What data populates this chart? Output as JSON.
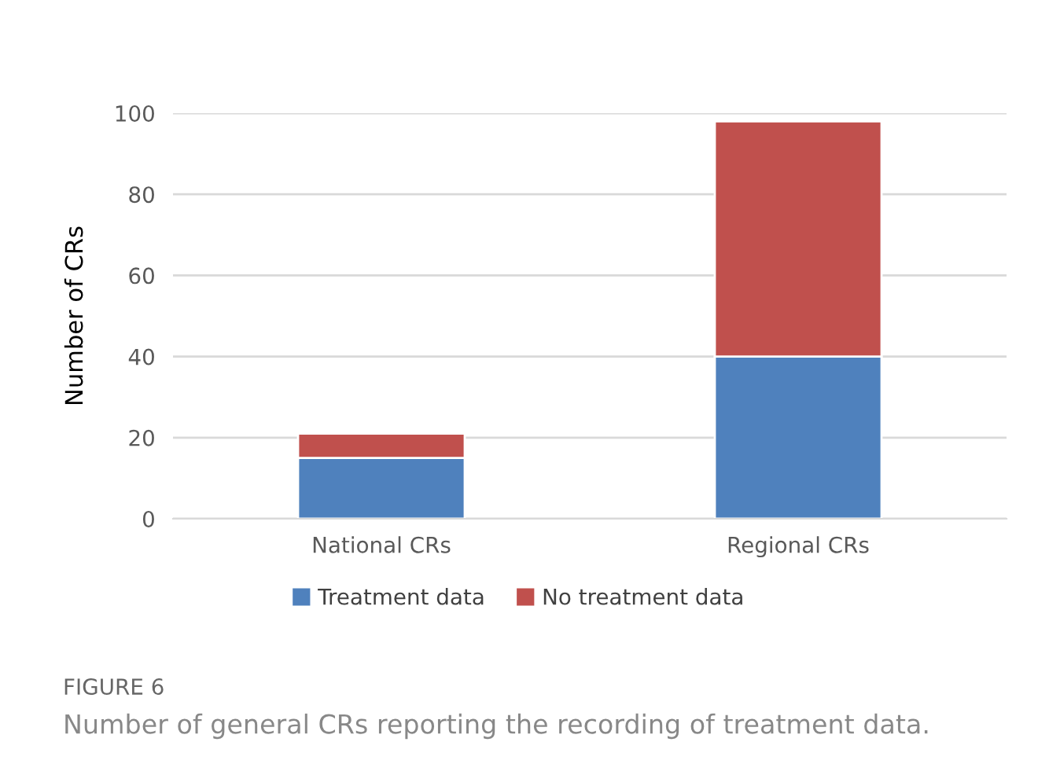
{
  "chart_data": {
    "type": "bar",
    "stacked": true,
    "ylabel": "Number of CRs",
    "categories": [
      "National CRs",
      "Regional CRs"
    ],
    "series": [
      {
        "name": "Treatment data",
        "color": "#4f81bd",
        "values": [
          15,
          40
        ]
      },
      {
        "name": "No treatment data",
        "color": "#c0504d",
        "values": [
          6,
          58
        ]
      }
    ],
    "ylim": [
      0,
      100
    ],
    "yticks": [
      0,
      20,
      40,
      60,
      80,
      100
    ],
    "grid": "y",
    "legend": "bottom",
    "annotations": [
      "FIGURE 6",
      "Number of general CRs reporting the recording of treatment data."
    ]
  }
}
